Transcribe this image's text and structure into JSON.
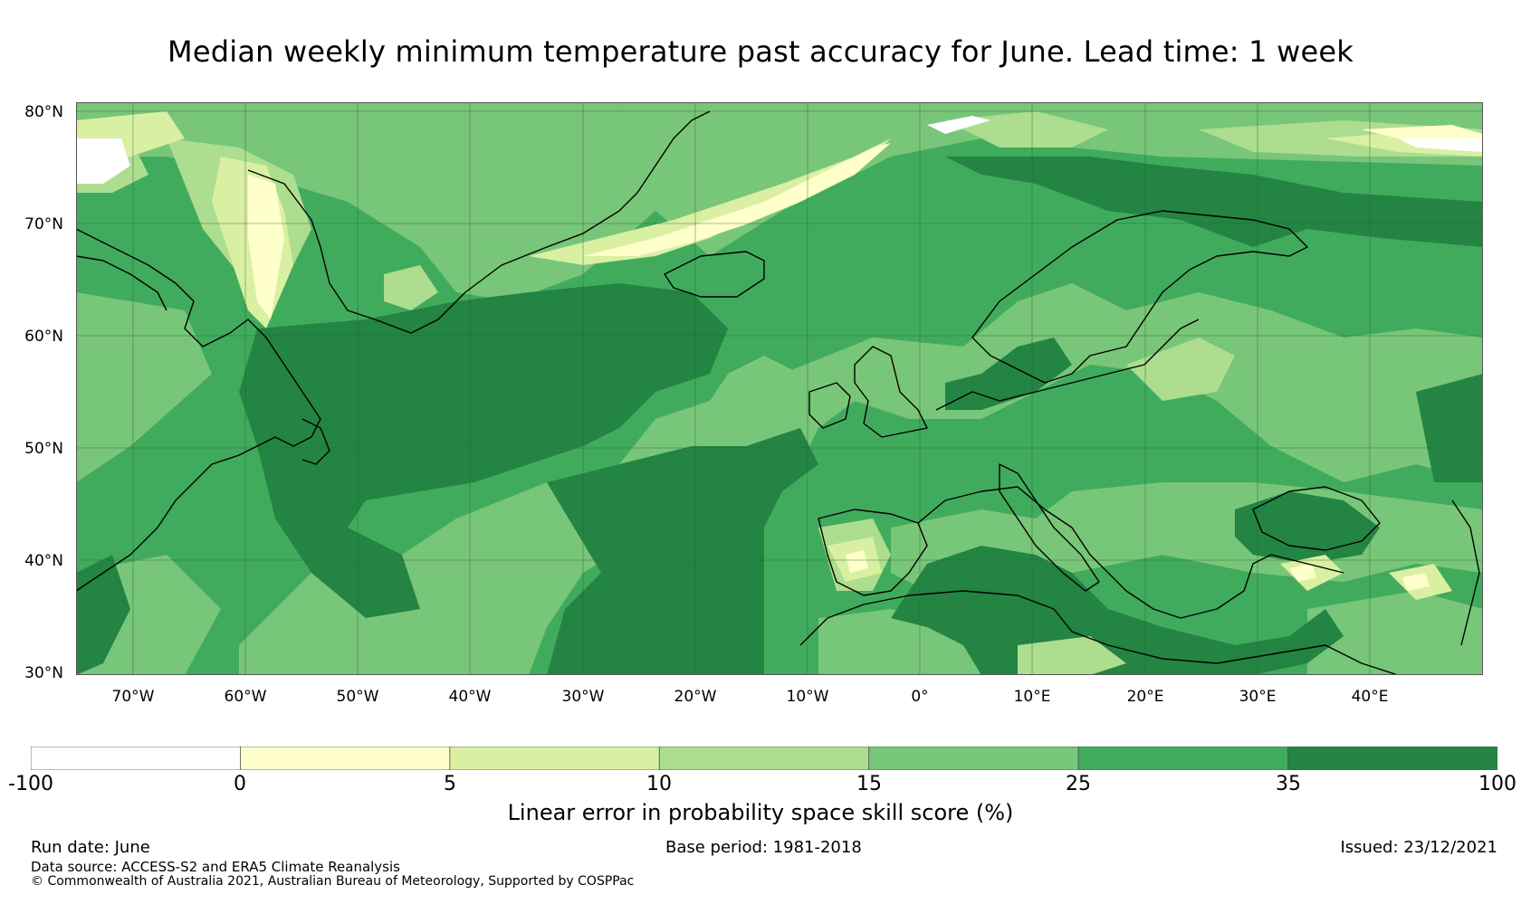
{
  "title": "Median weekly minimum temperature past accuracy for June. Lead time: 1 week",
  "map": {
    "latitudes": [
      "80°N",
      "70°N",
      "60°N",
      "50°N",
      "40°N",
      "30°N"
    ],
    "longitudes": [
      "70°W",
      "60°W",
      "50°W",
      "40°W",
      "30°W",
      "20°W",
      "10°W",
      "0°",
      "10°E",
      "20°E",
      "30°E",
      "40°E"
    ],
    "extent": {
      "lon_min": -75,
      "lon_max": 50,
      "lat_min": 30,
      "lat_max": 81
    },
    "colors": {
      "lt0": "#ffffff",
      "0_5": "#ffffcc",
      "5_10": "#d9f0a3",
      "10_15": "#addd8e",
      "15_25": "#78c679",
      "25_35": "#41ab5d",
      "35_100": "#238443"
    }
  },
  "colorbar": {
    "ticks": [
      "-100",
      "0",
      "5",
      "10",
      "15",
      "25",
      "35",
      "100"
    ],
    "label": "Linear error in probability space skill score (%)",
    "colors": [
      "#ffffff",
      "#ffffcc",
      "#d9f0a3",
      "#addd8e",
      "#78c679",
      "#41ab5d",
      "#238443"
    ]
  },
  "footer": {
    "run_date": "Run date: June",
    "base_period": "Base period: 1981-2018",
    "issued": "Issued: 23/12/2021",
    "data_source": "Data source: ACCESS-S2 and ERA5 Climate Reanalysis",
    "copyright": "© Commonwealth of Australia 2021, Australian Bureau of Meteorology, Supported by COSPPac"
  }
}
